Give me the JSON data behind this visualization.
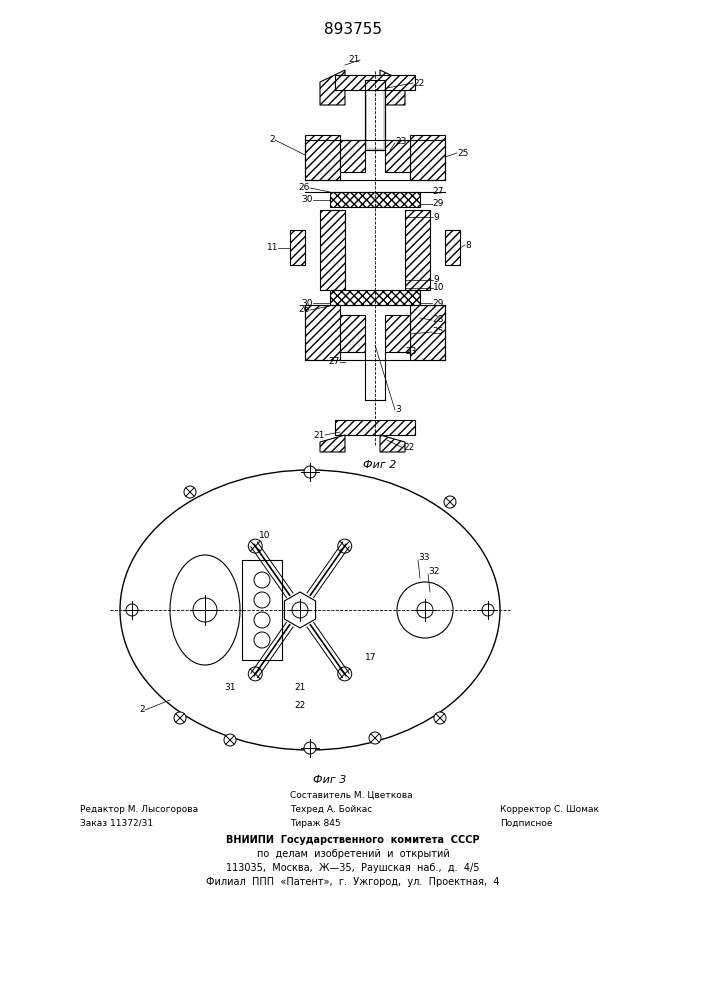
{
  "title": "893755",
  "fig2_label": "Фиг 2",
  "fig3_label": "Фиг 3",
  "bg_color": "#ffffff",
  "line_color": "#000000",
  "hatch_color": "#000000",
  "footer_lines": [
    [
      "Составитель М. Цветкова",
      "",
      ""
    ],
    [
      "Редактор М. Лысогорова",
      "Техред А. Бойкас",
      "Корректор С. Шомак"
    ],
    [
      "Заказ 11372/31",
      "Тираж 845",
      "Подписное"
    ],
    [
      "ВНИИПИ  Государственного  комитета  СССР",
      "",
      ""
    ],
    [
      "по  делам  изобретений  и  открытий",
      "",
      ""
    ],
    [
      "113035,  Москва,  Ж—35,  Раушская  наб.,  д.  4/5",
      "",
      ""
    ],
    [
      "Филиал  ППП  «Патент»,  г.  Ужгород,  ул.  Проектная,  4",
      "",
      ""
    ]
  ]
}
